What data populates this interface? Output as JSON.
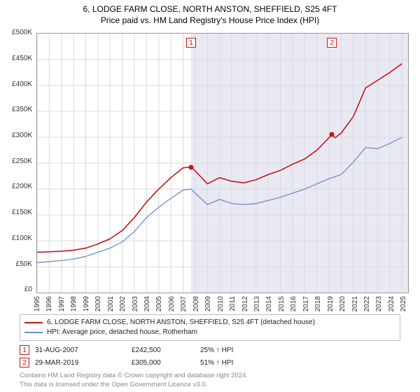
{
  "title_line1": "6, LODGE FARM CLOSE, NORTH ANSTON, SHEFFIELD, S25 4FT",
  "title_line2": "Price paid vs. HM Land Registry's House Price Index (HPI)",
  "chart": {
    "type": "line",
    "background_color": "#ffffff",
    "shade_color": "#e9e9f3",
    "grid_color": "#d9d9d9",
    "border_color": "#999999",
    "x": {
      "min": 1995,
      "max": 2025.5,
      "ticks": [
        1995,
        1996,
        1997,
        1998,
        1999,
        2000,
        2001,
        2002,
        2003,
        2004,
        2005,
        2006,
        2007,
        2008,
        2009,
        2010,
        2011,
        2012,
        2013,
        2014,
        2015,
        2016,
        2017,
        2018,
        2019,
        2020,
        2021,
        2022,
        2023,
        2024,
        2025
      ]
    },
    "y": {
      "min": 0,
      "max": 500000,
      "tick_step": 50000,
      "labels": [
        "£0",
        "£50K",
        "£100K",
        "£150K",
        "£200K",
        "£250K",
        "£300K",
        "£350K",
        "£400K",
        "£450K",
        "£500K"
      ]
    },
    "shade_from": 2007.66,
    "series": [
      {
        "id": "property",
        "color": "#c01818",
        "width": 1.6,
        "points": [
          [
            1995,
            78000
          ],
          [
            1996,
            79000
          ],
          [
            1997,
            80000
          ],
          [
            1998,
            82000
          ],
          [
            1999,
            86000
          ],
          [
            2000,
            94000
          ],
          [
            2001,
            104000
          ],
          [
            2002,
            120000
          ],
          [
            2003,
            145000
          ],
          [
            2004,
            175000
          ],
          [
            2005,
            200000
          ],
          [
            2006,
            222000
          ],
          [
            2007,
            241000
          ],
          [
            2007.66,
            242500
          ],
          [
            2008,
            235000
          ],
          [
            2009,
            210000
          ],
          [
            2010,
            222000
          ],
          [
            2011,
            215000
          ],
          [
            2012,
            212000
          ],
          [
            2013,
            218000
          ],
          [
            2014,
            228000
          ],
          [
            2015,
            236000
          ],
          [
            2016,
            248000
          ],
          [
            2017,
            258000
          ],
          [
            2018,
            275000
          ],
          [
            2019.24,
            305000
          ],
          [
            2019.5,
            299000
          ],
          [
            2020,
            308000
          ],
          [
            2021,
            340000
          ],
          [
            2022,
            395000
          ],
          [
            2023,
            410000
          ],
          [
            2024,
            425000
          ],
          [
            2025,
            442000
          ]
        ]
      },
      {
        "id": "hpi",
        "color": "#6b8fc9",
        "width": 1.3,
        "points": [
          [
            1995,
            58000
          ],
          [
            1996,
            60000
          ],
          [
            1997,
            62000
          ],
          [
            1998,
            65000
          ],
          [
            1999,
            70000
          ],
          [
            2000,
            78000
          ],
          [
            2001,
            86000
          ],
          [
            2002,
            98000
          ],
          [
            2003,
            118000
          ],
          [
            2004,
            145000
          ],
          [
            2005,
            165000
          ],
          [
            2006,
            182000
          ],
          [
            2007,
            198000
          ],
          [
            2007.66,
            200000
          ],
          [
            2008,
            192000
          ],
          [
            2009,
            170000
          ],
          [
            2010,
            180000
          ],
          [
            2011,
            172000
          ],
          [
            2012,
            170000
          ],
          [
            2013,
            172000
          ],
          [
            2014,
            178000
          ],
          [
            2015,
            184000
          ],
          [
            2016,
            192000
          ],
          [
            2017,
            200000
          ],
          [
            2018,
            210000
          ],
          [
            2019,
            220000
          ],
          [
            2020,
            228000
          ],
          [
            2021,
            252000
          ],
          [
            2022,
            280000
          ],
          [
            2023,
            278000
          ],
          [
            2024,
            288000
          ],
          [
            2025,
            300000
          ]
        ]
      }
    ],
    "sale_markers": [
      {
        "n": "1",
        "x": 2007.66,
        "y": 242500,
        "color": "#c01818"
      },
      {
        "n": "2",
        "x": 2019.24,
        "y": 305000,
        "color": "#c01818"
      }
    ]
  },
  "legend": {
    "rows": [
      {
        "color": "#c01818",
        "label": "6, LODGE FARM CLOSE, NORTH ANSTON, SHEFFIELD, S25 4FT (detached house)"
      },
      {
        "color": "#6b8fc9",
        "label": "HPI: Average price, detached house, Rotherham"
      }
    ]
  },
  "sales": [
    {
      "n": "1",
      "date": "31-AUG-2007",
      "price": "£242,500",
      "pct": "25% ↑ HPI"
    },
    {
      "n": "2",
      "date": "29-MAR-2019",
      "price": "£305,000",
      "pct": "51% ↑ HPI"
    }
  ],
  "footnote_line1": "Contains HM Land Registry data © Crown copyright and database right 2024.",
  "footnote_line2": "This data is licensed under the Open Government Licence v3.0."
}
